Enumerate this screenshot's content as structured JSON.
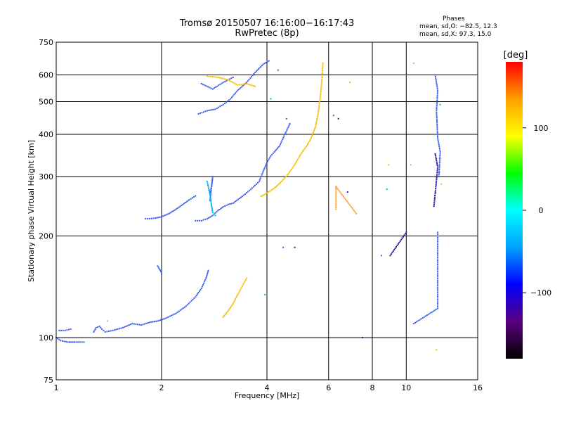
{
  "chart_data": {
    "type": "scatter",
    "title": "Tromsø 20150507 16:16:00−16:17:43",
    "subtitle": "RwPretec (8p)",
    "xlabel": "Frequency [MHz]",
    "ylabel": "Stationary phase Virtual Height [km]",
    "xscale": "log",
    "yscale": "log",
    "xlim": [
      1,
      16
    ],
    "ylim": [
      75,
      750
    ],
    "xticks": [
      1,
      2,
      4,
      6,
      8,
      10,
      16
    ],
    "yticks": [
      75,
      100,
      200,
      300,
      400,
      500,
      600,
      750
    ],
    "grid": true,
    "stats": {
      "heading": "Phases",
      "line_o": "mean, sd,O: −82.5, 12.3",
      "line_x": "mean, sd,X:  97.3, 15.0"
    },
    "colorbar": {
      "label": "[deg]",
      "range": [
        -180,
        180
      ],
      "ticks": [
        -100,
        0,
        100
      ],
      "colors": [
        "#000000",
        "#5a007f",
        "#0000ff",
        "#00a0ff",
        "#00ffff",
        "#00ff00",
        "#ffff00",
        "#ffa000",
        "#ff0000"
      ]
    },
    "series": [
      {
        "color": "#3a5cf0",
        "traces": [
          [
            [
              1.0,
              100
            ],
            [
              1.03,
              98
            ],
            [
              1.08,
              97
            ],
            [
              1.14,
              97
            ],
            [
              1.2,
              97
            ]
          ],
          [
            [
              1.02,
              105
            ],
            [
              1.06,
              105
            ],
            [
              1.1,
              106
            ]
          ],
          [
            [
              1.28,
              104
            ],
            [
              1.3,
              107
            ],
            [
              1.33,
              108
            ],
            [
              1.35,
              106
            ],
            [
              1.38,
              104
            ],
            [
              1.45,
              105
            ],
            [
              1.55,
              107
            ],
            [
              1.65,
              110
            ],
            [
              1.75,
              109
            ],
            [
              1.85,
              111
            ],
            [
              1.95,
              112
            ],
            [
              2.05,
              114
            ],
            [
              2.2,
              118
            ],
            [
              2.35,
              124
            ],
            [
              2.5,
              132
            ],
            [
              2.6,
              140
            ],
            [
              2.68,
              150
            ],
            [
              2.72,
              158
            ]
          ],
          [
            [
              1.95,
              163
            ],
            [
              1.97,
              160
            ],
            [
              1.99,
              157
            ],
            [
              2.0,
              155
            ]
          ],
          [
            [
              1.8,
              225
            ],
            [
              1.85,
              225
            ],
            [
              1.92,
              226
            ],
            [
              2.0,
              228
            ],
            [
              2.1,
              233
            ],
            [
              2.2,
              240
            ],
            [
              2.3,
              248
            ],
            [
              2.4,
              256
            ],
            [
              2.5,
              263
            ]
          ],
          [
            [
              2.5,
              222
            ],
            [
              2.6,
              222
            ],
            [
              2.7,
              225
            ],
            [
              2.8,
              230
            ],
            [
              2.9,
              238
            ],
            [
              3.0,
              244
            ],
            [
              3.1,
              248
            ],
            [
              3.2,
              250
            ],
            [
              3.4,
              262
            ],
            [
              3.6,
              275
            ],
            [
              3.8,
              290
            ],
            [
              3.9,
              310
            ],
            [
              4.0,
              330
            ],
            [
              4.1,
              345
            ],
            [
              4.2,
              355
            ],
            [
              4.35,
              370
            ],
            [
              4.5,
              400
            ],
            [
              4.65,
              430
            ]
          ],
          [
            [
              2.55,
              460
            ],
            [
              2.7,
              470
            ],
            [
              2.85,
              475
            ],
            [
              3.0,
              490
            ],
            [
              3.15,
              510
            ],
            [
              3.3,
              540
            ],
            [
              3.5,
              570
            ],
            [
              3.7,
              610
            ],
            [
              3.9,
              645
            ],
            [
              4.05,
              660
            ]
          ],
          [
            [
              2.6,
              565
            ],
            [
              2.8,
              545
            ],
            [
              3.0,
              570
            ],
            [
              3.2,
              590
            ]
          ],
          [
            [
              2.75,
              270
            ],
            [
              2.78,
              280
            ],
            [
              2.8,
              300
            ],
            [
              2.75,
              255
            ]
          ],
          [
            [
              4.45,
              185
            ],
            [
              4.55,
              445
            ],
            [
              6.2,
              455
            ],
            [
              8.5,
              175
            ],
            [
              10.5,
              110
            ],
            [
              12.3,
              122
            ],
            [
              12.3,
              155
            ],
            [
              12.3,
              205
            ],
            [
              12.4,
              300
            ],
            [
              12.5,
              355
            ],
            [
              12.3,
              390
            ],
            [
              12.2,
              470
            ],
            [
              12.3,
              540
            ],
            [
              12.1,
              600
            ],
            [
              4.3,
              620
            ],
            [
              6.3,
              280
            ]
          ]
        ]
      },
      {
        "color": "#f0c000",
        "traces": [
          [
            [
              3.0,
              115
            ],
            [
              3.1,
              120
            ],
            [
              3.2,
              126
            ],
            [
              3.3,
              134
            ],
            [
              3.4,
              142
            ],
            [
              3.5,
              150
            ]
          ],
          [
            [
              3.85,
              262
            ],
            [
              4.0,
              268
            ],
            [
              4.2,
              277
            ],
            [
              4.4,
              290
            ],
            [
              4.6,
              305
            ],
            [
              4.8,
              325
            ],
            [
              5.0,
              350
            ],
            [
              5.2,
              370
            ],
            [
              5.35,
              390
            ],
            [
              5.5,
              420
            ],
            [
              5.6,
              460
            ],
            [
              5.7,
              530
            ],
            [
              5.75,
              590
            ],
            [
              5.78,
              650
            ]
          ],
          [
            [
              2.7,
              595
            ],
            [
              2.9,
              590
            ],
            [
              3.1,
              580
            ],
            [
              3.3,
              560
            ],
            [
              3.5,
              565
            ],
            [
              3.7,
              555
            ],
            [
              6.9,
              570
            ],
            [
              8.9,
              325
            ],
            [
              12.6,
              285
            ],
            [
              12.2,
              92
            ]
          ]
        ]
      },
      {
        "color": "#ffa030",
        "traces": [
          [
            [
              1.4,
              112
            ],
            [
              6.3,
              240
            ],
            [
              6.3,
              280
            ],
            [
              7.2,
              233
            ],
            [
              10.5,
              650
            ],
            [
              10.3,
              325
            ]
          ]
        ]
      },
      {
        "color": "#00b0f0",
        "traces": [
          [
            [
              2.7,
              290
            ],
            [
              2.72,
              280
            ],
            [
              2.75,
              265
            ],
            [
              2.78,
              245
            ],
            [
              2.8,
              235
            ],
            [
              2.85,
              230
            ],
            [
              3.95,
              134
            ],
            [
              4.1,
              510
            ],
            [
              8.8,
              275
            ],
            [
              12.5,
              490
            ],
            [
              12.4,
              200
            ]
          ]
        ]
      },
      {
        "color": "#3010a0",
        "traces": [
          [
            [
              4.8,
              185
            ],
            [
              6.4,
              445
            ],
            [
              6.8,
              270
            ],
            [
              7.5,
              100
            ],
            [
              9.0,
              175
            ],
            [
              10.0,
              205
            ],
            [
              12.1,
              350
            ],
            [
              12.3,
              320
            ],
            [
              12.0,
              245
            ]
          ]
        ]
      }
    ]
  }
}
